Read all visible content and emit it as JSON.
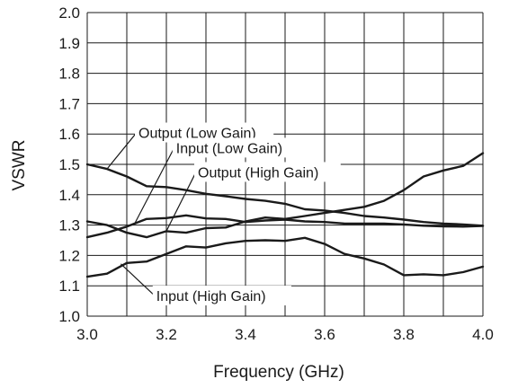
{
  "chart_data": {
    "type": "line",
    "title": "",
    "xlabel": "Frequency (GHz)",
    "ylabel": "VSWR",
    "xlim": [
      3.0,
      4.0
    ],
    "ylim": [
      1.0,
      2.0
    ],
    "grid": true,
    "x_ticks": [
      3.0,
      3.2,
      3.4,
      3.6,
      3.8,
      4.0
    ],
    "x_tick_labels": [
      "3.0",
      "3.2",
      "3.4",
      "3.6",
      "3.8",
      "4.0"
    ],
    "y_ticks": [
      1.0,
      1.1,
      1.2,
      1.3,
      1.4,
      1.5,
      1.6,
      1.7,
      1.8,
      1.9,
      2.0
    ],
    "y_tick_labels": [
      "1.0",
      "1.1",
      "1.2",
      "1.3",
      "1.4",
      "1.5",
      "1.6",
      "1.7",
      "1.8",
      "1.9",
      "2.0"
    ],
    "series": [
      {
        "name": "Output (Low Gain)",
        "x": [
          3.0,
          3.05,
          3.1,
          3.15,
          3.2,
          3.25,
          3.3,
          3.35,
          3.4,
          3.45,
          3.5,
          3.55,
          3.6,
          3.65,
          3.7,
          3.75,
          3.8,
          3.85,
          3.9,
          3.95,
          4.0
        ],
        "y": [
          1.5,
          1.485,
          1.46,
          1.428,
          1.425,
          1.415,
          1.403,
          1.395,
          1.386,
          1.38,
          1.37,
          1.352,
          1.348,
          1.34,
          1.33,
          1.325,
          1.318,
          1.31,
          1.305,
          1.302,
          1.298
        ]
      },
      {
        "name": "Input (Low Gain)",
        "x": [
          3.0,
          3.05,
          3.1,
          3.15,
          3.2,
          3.25,
          3.3,
          3.35,
          3.4,
          3.45,
          3.5,
          3.55,
          3.6,
          3.65,
          3.7,
          3.75,
          3.8,
          3.85,
          3.9,
          3.95,
          4.0
        ],
        "y": [
          1.26,
          1.275,
          1.295,
          1.32,
          1.323,
          1.332,
          1.322,
          1.32,
          1.31,
          1.315,
          1.318,
          1.312,
          1.31,
          1.305,
          1.305,
          1.305,
          1.302,
          1.298,
          1.296,
          1.295,
          1.297
        ]
      },
      {
        "name": "Output (High Gain)",
        "x": [
          3.0,
          3.05,
          3.1,
          3.15,
          3.2,
          3.25,
          3.3,
          3.35,
          3.4,
          3.45,
          3.5,
          3.55,
          3.6,
          3.65,
          3.7,
          3.75,
          3.8,
          3.85,
          3.9,
          3.95,
          4.0
        ],
        "y": [
          1.312,
          1.3,
          1.275,
          1.26,
          1.28,
          1.275,
          1.29,
          1.292,
          1.312,
          1.325,
          1.32,
          1.33,
          1.34,
          1.35,
          1.36,
          1.38,
          1.415,
          1.46,
          1.48,
          1.495,
          1.537
        ]
      },
      {
        "name": "Input (High Gain)",
        "x": [
          3.0,
          3.05,
          3.1,
          3.15,
          3.2,
          3.25,
          3.3,
          3.35,
          3.4,
          3.45,
          3.5,
          3.55,
          3.6,
          3.65,
          3.7,
          3.75,
          3.8,
          3.85,
          3.9,
          3.95,
          4.0
        ],
        "y": [
          1.13,
          1.14,
          1.175,
          1.18,
          1.205,
          1.23,
          1.226,
          1.24,
          1.248,
          1.25,
          1.248,
          1.258,
          1.238,
          1.205,
          1.19,
          1.17,
          1.135,
          1.138,
          1.135,
          1.145,
          1.163
        ]
      }
    ],
    "annotations": [
      {
        "text": "Output (Low Gain)",
        "series": "Output (Low Gain)",
        "point_x": 3.05,
        "point_y": 1.485,
        "text_x": 3.125,
        "text_y": 1.605
      },
      {
        "text": "Input (Low Gain)",
        "series": "Input (Low Gain)",
        "point_x": 3.12,
        "point_y": 1.305,
        "text_x": 3.22,
        "text_y": 1.555
      },
      {
        "text": "Output (High Gain)",
        "series": "Output (High Gain)",
        "point_x": 3.2,
        "point_y": 1.28,
        "text_x": 3.275,
        "text_y": 1.475
      },
      {
        "text": "Input (High Gain)",
        "series": "Input (High Gain)",
        "point_x": 3.085,
        "point_y": 1.172,
        "text_x": 3.17,
        "text_y": 1.068
      }
    ]
  }
}
